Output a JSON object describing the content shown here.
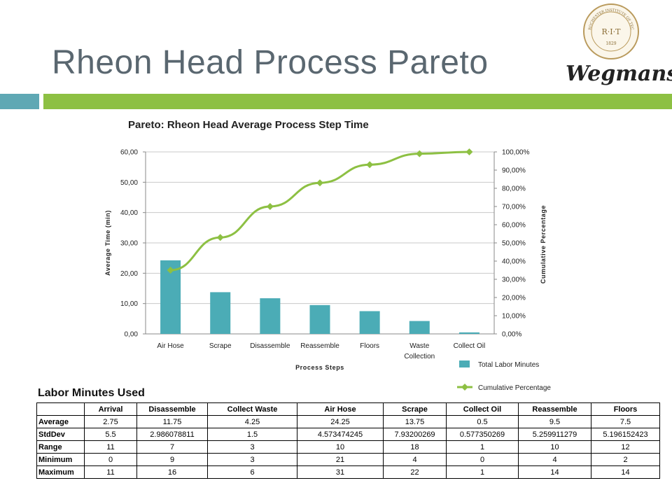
{
  "slide": {
    "title": "Rheon Head Process Pareto",
    "logo_text": "Wegmans",
    "seal_text": "ROCHESTER INSTITUTE OF TECHNOLOGY",
    "seal_center": "R·I·T",
    "seal_year": "1829",
    "accent_left": "#5fa8b4",
    "accent_right": "#8dc043"
  },
  "chart_data": {
    "type": "bar",
    "title": "Pareto: Rheon Head Average Process Step Time",
    "xlabel": "Process Steps",
    "ylabel": "Average Time (min)",
    "y2label": "Cumulative Percentage",
    "categories": [
      "Air Hose",
      "Scrape",
      "Disassemble",
      "Reassemble",
      "Floors",
      "Waste Collection",
      "Collect Oil"
    ],
    "series": [
      {
        "name": "Total Labor Minutes",
        "type": "bar",
        "color": "#4bacb6",
        "values": [
          24.25,
          13.75,
          11.75,
          9.5,
          7.5,
          4.25,
          0.5
        ]
      },
      {
        "name": "Cumulative Percentage",
        "type": "line",
        "axis": "right",
        "color": "#8dc043",
        "values": [
          0.35,
          0.53,
          0.7,
          0.83,
          0.93,
          0.99,
          1.0
        ]
      }
    ],
    "ylim": [
      0,
      60
    ],
    "y_ticks": [
      "0,00",
      "10,00",
      "20,00",
      "30,00",
      "40,00",
      "50,00",
      "60,00"
    ],
    "y2lim": [
      0,
      1
    ],
    "y2_ticks": [
      "0,00%",
      "10,00%",
      "20,00%",
      "30,00%",
      "40,00%",
      "50,00%",
      "60,00%",
      "70,00%",
      "80,00%",
      "90,00%",
      "100,00%"
    ],
    "grid": true,
    "legend": "bottom-right"
  },
  "table": {
    "title": "Labor Minutes Used",
    "columns": [
      "",
      "Arrival",
      "Disassemble",
      "Collect Waste",
      "Air Hose",
      "Scrape",
      "Collect Oil",
      "Reassemble",
      "Floors"
    ],
    "rows": [
      [
        "Average",
        "2.75",
        "11.75",
        "4.25",
        "24.25",
        "13.75",
        "0.5",
        "9.5",
        "7.5"
      ],
      [
        "StdDev",
        "5.5",
        "2.986078811",
        "1.5",
        "4.573474245",
        "7.93200269",
        "0.577350269",
        "5.259911279",
        "5.196152423"
      ],
      [
        "Range",
        "11",
        "7",
        "3",
        "10",
        "18",
        "1",
        "10",
        "12"
      ],
      [
        "Minimum",
        "0",
        "9",
        "3",
        "21",
        "4",
        "0",
        "4",
        "2"
      ],
      [
        "Maximum",
        "11",
        "16",
        "6",
        "31",
        "22",
        "1",
        "14",
        "14"
      ]
    ]
  }
}
